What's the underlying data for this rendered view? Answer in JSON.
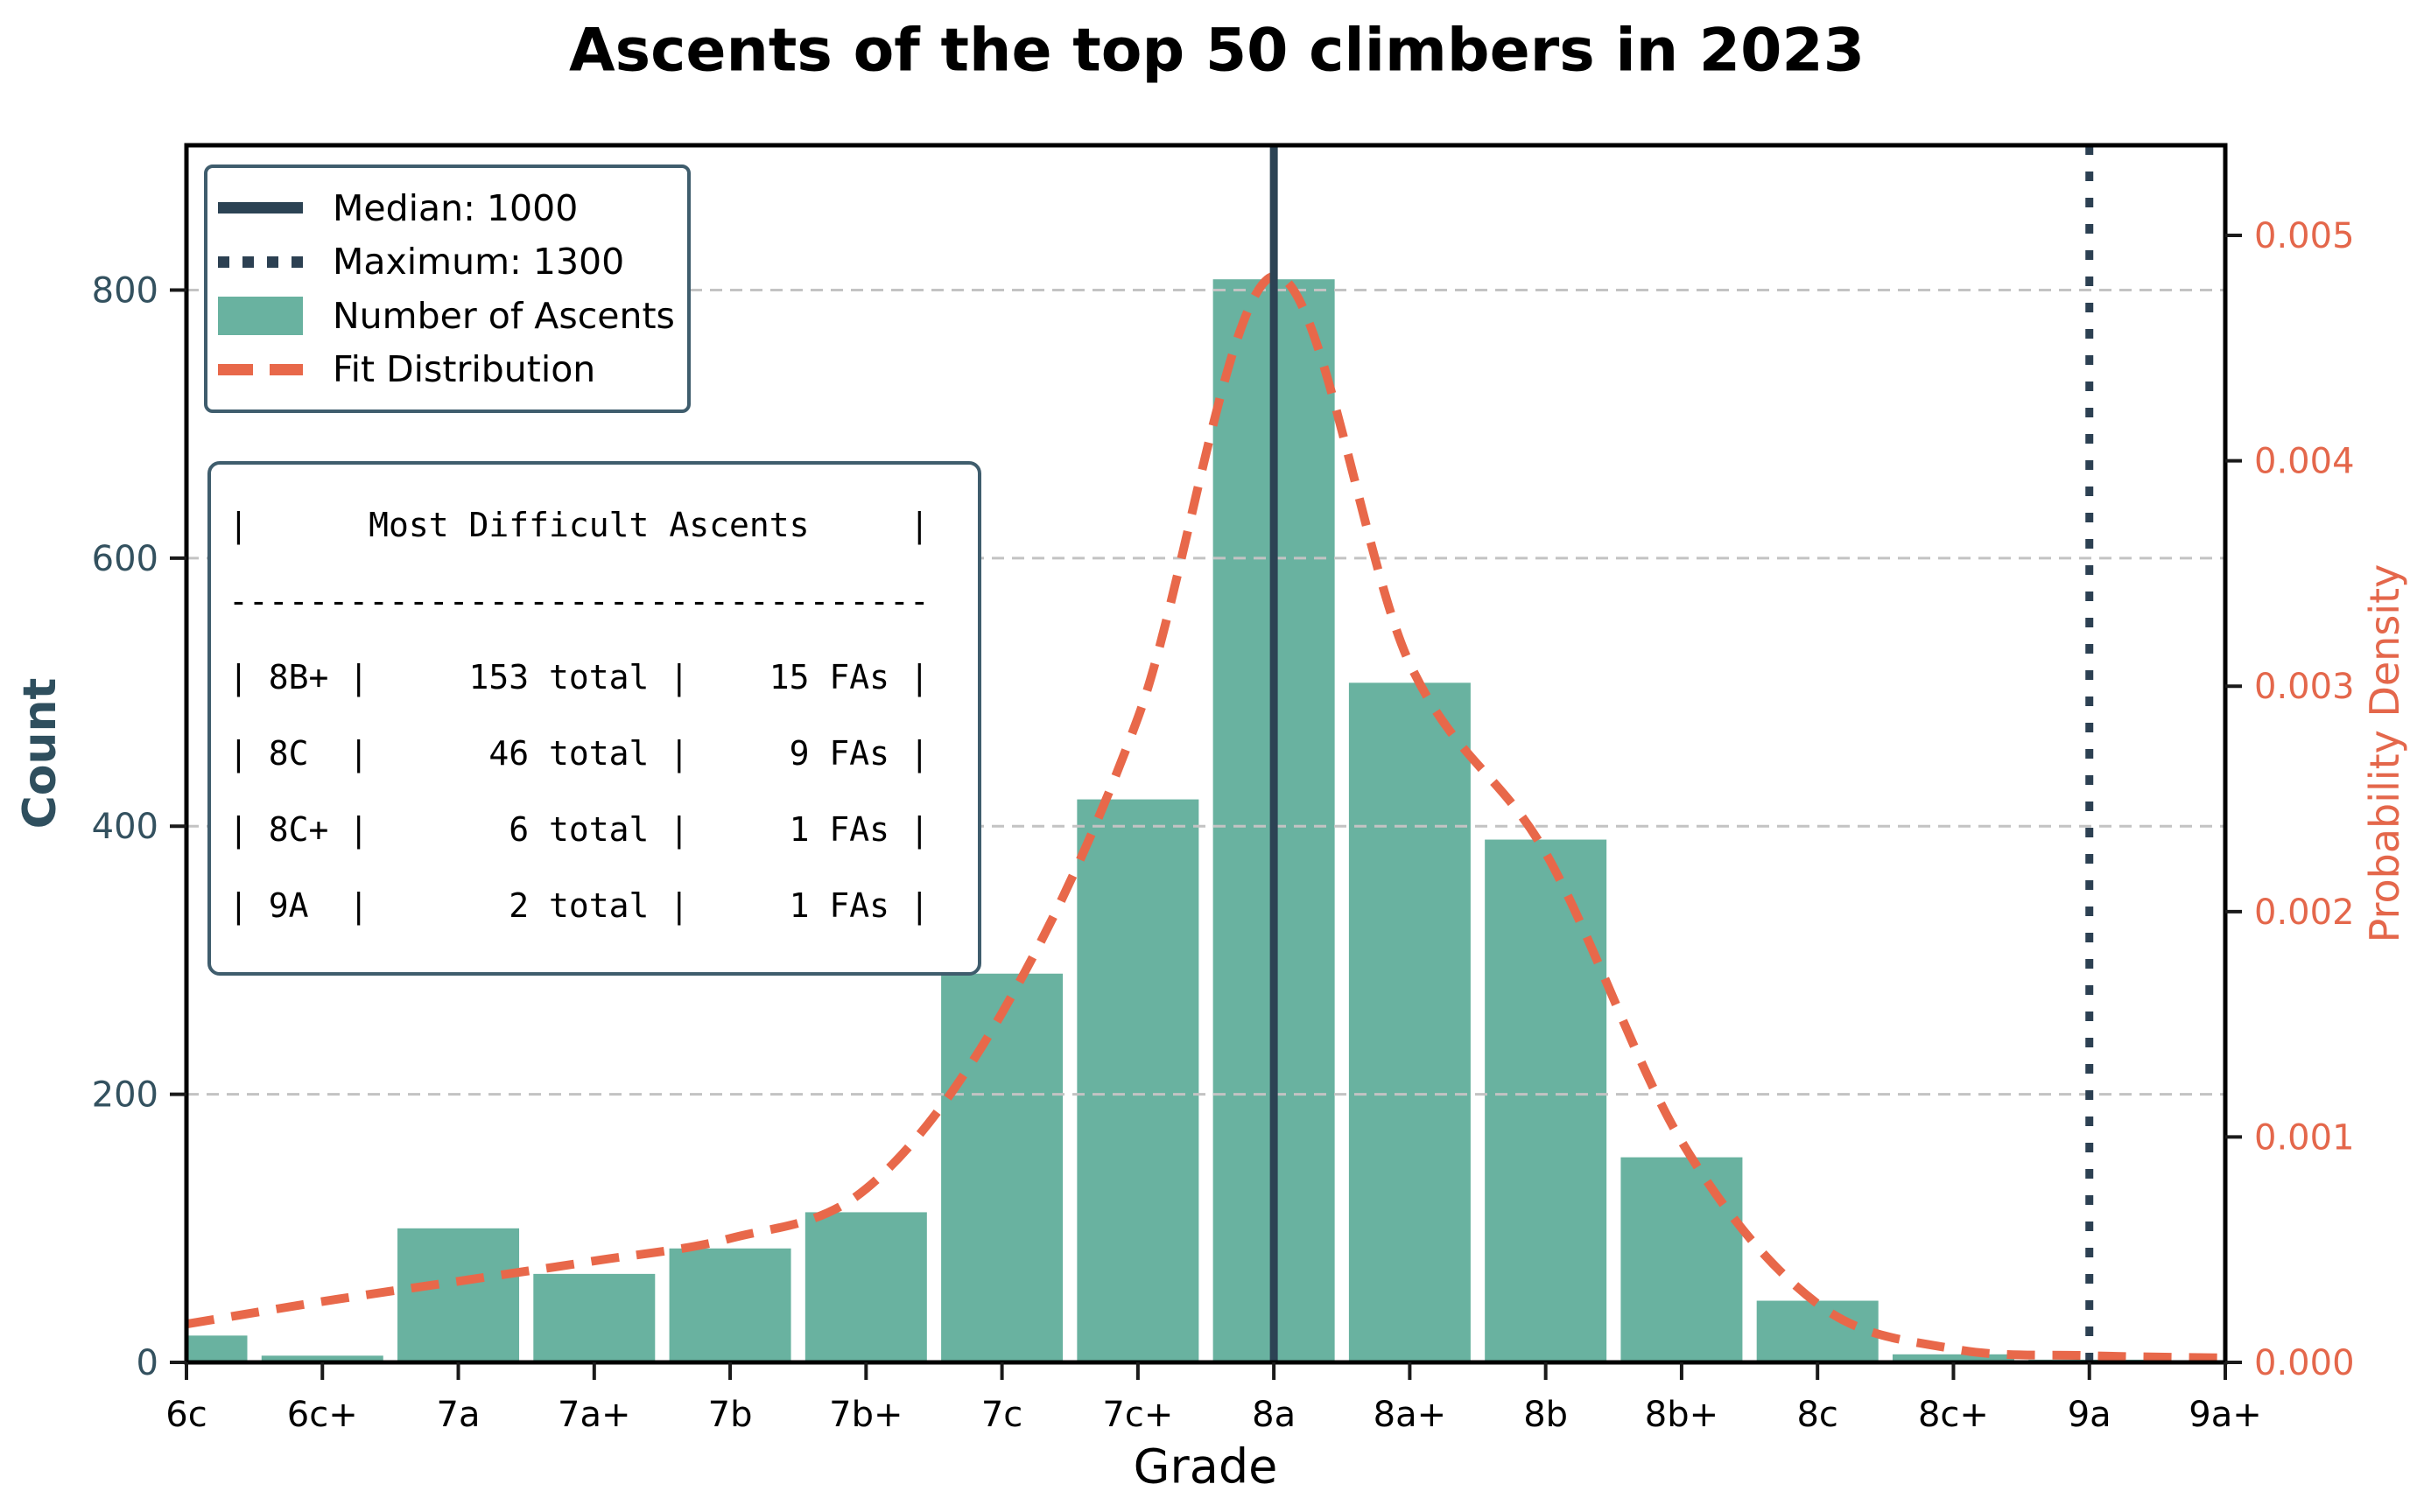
{
  "title": "Ascents of the top 50 climbers in 2023",
  "axes": {
    "x": {
      "label": "Grade",
      "tick_labels": [
        "6c",
        "6c+",
        "7a",
        "7a+",
        "7b",
        "7b+",
        "7c",
        "7c+",
        "8a",
        "8a+",
        "8b",
        "8b+",
        "8c",
        "8c+",
        "9a",
        "9a+"
      ]
    },
    "y_left": {
      "label": "Count",
      "tick_values": [
        0,
        200,
        400,
        600,
        800
      ],
      "tick_labels": [
        "0",
        "200",
        "400",
        "600",
        "800"
      ]
    },
    "y_right": {
      "label": "Probability Density",
      "tick_values": [
        0,
        0.001,
        0.002,
        0.003,
        0.004,
        0.005
      ],
      "tick_labels": [
        "0.000",
        "0.001",
        "0.002",
        "0.003",
        "0.004",
        "0.005"
      ]
    }
  },
  "legend": {
    "items": [
      {
        "label": "Median: 1000",
        "swatch": "solid-line",
        "color_key": "median"
      },
      {
        "label": "Maximum: 1300",
        "swatch": "dotted-line",
        "color_key": "maximum"
      },
      {
        "label": "Number of Ascents",
        "swatch": "patch",
        "color_key": "bars"
      },
      {
        "label": "Fit Distribution",
        "swatch": "dashed-line",
        "color_key": "fit"
      }
    ]
  },
  "ascent_table": {
    "lines": [
      "|      Most Difficult Ascents     |",
      "-----------------------------------",
      "| 8B+ |     153 total |    15 FAs |",
      "| 8C  |      46 total |     9 FAs |",
      "| 8C+ |       6 total |     1 FAs |",
      "| 9A  |       2 total |     1 FAs |"
    ]
  },
  "chart_data": {
    "type": "bar",
    "title": "Ascents of the top 50 climbers in 2023",
    "categories": [
      "6c",
      "6c+",
      "7a",
      "7a+",
      "7b",
      "7b+",
      "7c",
      "7c+",
      "8a",
      "8a+",
      "8b",
      "8b+",
      "8c",
      "8c+",
      "9a",
      "9a+"
    ],
    "series": [
      {
        "name": "Number of Ascents",
        "type": "bar",
        "yaxis": "left",
        "values": [
          20,
          5,
          100,
          66,
          85,
          112,
          290,
          420,
          808,
          507,
          390,
          153,
          46,
          6,
          2,
          0
        ]
      },
      {
        "name": "Fit Distribution",
        "type": "line",
        "line_style": "dashed",
        "yaxis": "right",
        "values": [
          0.00017,
          0.00027,
          0.00036,
          0.00045,
          0.00055,
          0.00077,
          0.00155,
          0.00286,
          0.00482,
          0.0031,
          0.00226,
          0.00098,
          0.00026,
          6e-05,
          3e-05,
          2e-05
        ]
      }
    ],
    "vlines": [
      {
        "name": "median",
        "label": "Median: 1000",
        "value": 1000,
        "at_category": "8a",
        "line_style": "solid"
      },
      {
        "name": "maximum",
        "label": "Maximum: 1300",
        "value": 1300,
        "at_category": "9a",
        "line_style": "dotted"
      }
    ],
    "xlabel": "Grade",
    "ylabel_left": "Count",
    "ylabel_right": "Probability Density",
    "ylim_left": [
      0,
      908
    ],
    "ylim_right": [
      0,
      0.0054
    ],
    "grid": "horizontal-dashed",
    "legend_position": "upper left"
  },
  "colors": {
    "bars": "#69b2a0",
    "fit": "#e8684a",
    "median": "#2c4354",
    "maximum": "#2c4052",
    "left_axis_text": "#33515f",
    "right_axis_text": "#e4674b",
    "grid": "#c3c3c3",
    "spine": "#000000",
    "box_border": "#3f5d6d",
    "text": "#000000"
  }
}
